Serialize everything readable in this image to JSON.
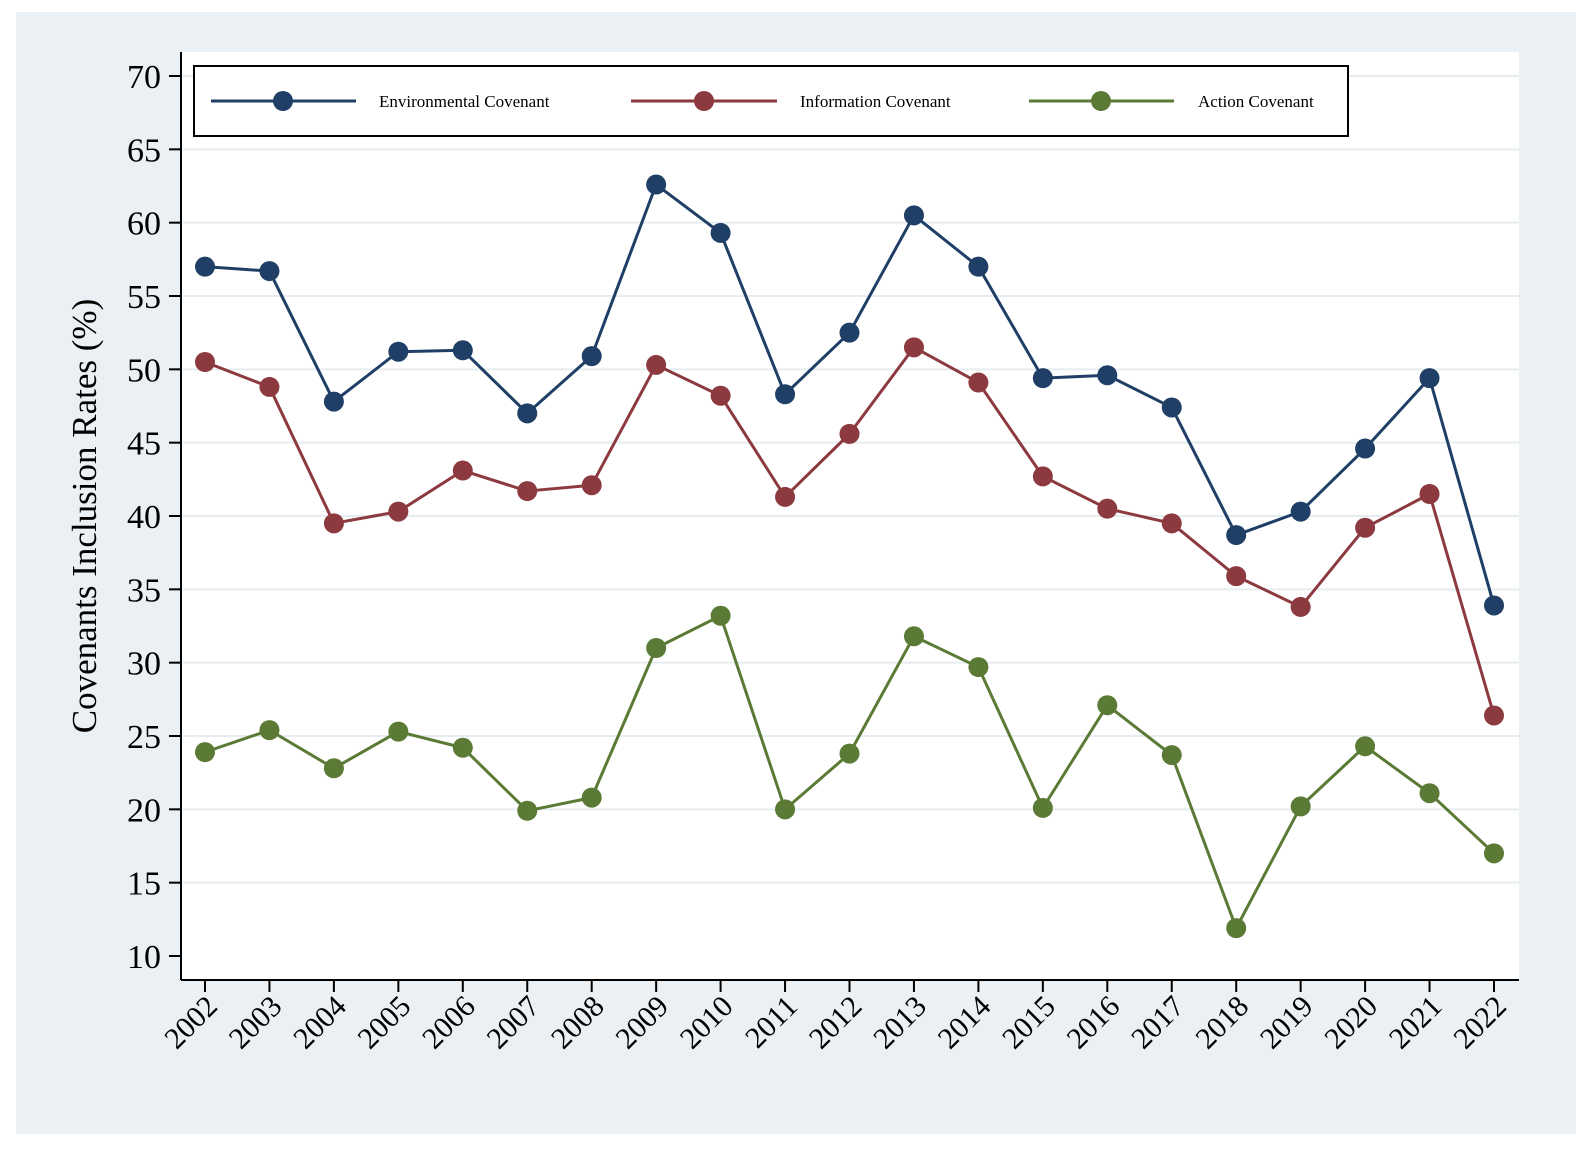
{
  "chart_data": {
    "type": "line",
    "title": "",
    "xlabel": "",
    "ylabel": "Covenants Inclusion Rates (%)",
    "ylim": [
      10,
      70
    ],
    "yticks": [
      10,
      15,
      20,
      25,
      30,
      35,
      40,
      45,
      50,
      55,
      60,
      65,
      70
    ],
    "grid": true,
    "legend_position": "top",
    "categories": [
      "2002",
      "2003",
      "2004",
      "2005",
      "2006",
      "2007",
      "2008",
      "2009",
      "2010",
      "2011",
      "2012",
      "2013",
      "2014",
      "2015",
      "2016",
      "2017",
      "2018",
      "2019",
      "2020",
      "2021",
      "2022"
    ],
    "series": [
      {
        "name": "Environmental Covenant",
        "color": "#1f3f66",
        "values": [
          57.0,
          56.7,
          47.8,
          51.2,
          51.3,
          47.0,
          50.9,
          62.6,
          59.3,
          48.3,
          52.5,
          60.5,
          57.0,
          49.4,
          49.6,
          47.4,
          38.7,
          40.3,
          44.6,
          49.4,
          33.9
        ]
      },
      {
        "name": "Information Covenant",
        "color": "#8c3a3f",
        "values": [
          50.5,
          48.8,
          39.5,
          40.3,
          43.1,
          41.7,
          42.1,
          50.3,
          48.2,
          41.3,
          45.6,
          51.5,
          49.1,
          42.7,
          40.5,
          39.5,
          35.9,
          33.8,
          39.2,
          41.5,
          26.4
        ]
      },
      {
        "name": "Action Covenant",
        "color": "#5b7a35",
        "values": [
          23.9,
          25.4,
          22.8,
          25.3,
          24.2,
          19.9,
          20.8,
          31.0,
          33.2,
          20.0,
          23.8,
          31.8,
          29.7,
          20.1,
          27.1,
          23.7,
          11.9,
          20.2,
          24.3,
          21.1,
          17.0
        ]
      }
    ]
  }
}
